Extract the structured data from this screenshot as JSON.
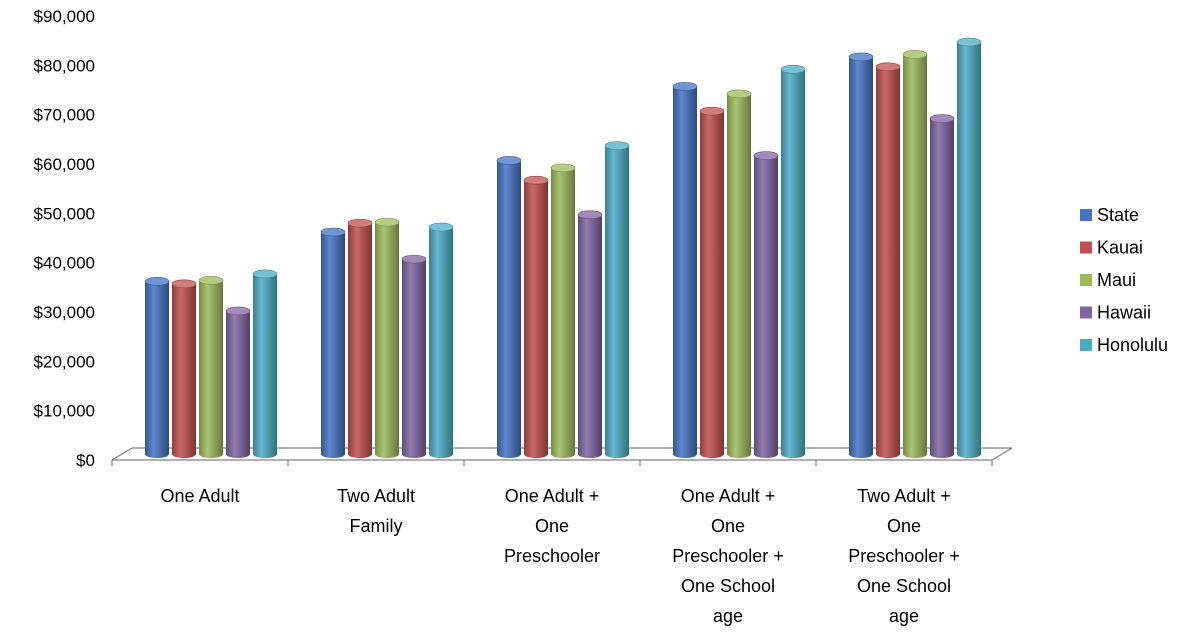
{
  "chart_data": {
    "type": "bar",
    "title": "",
    "xlabel": "",
    "ylabel": "",
    "ylim": [
      0,
      90000
    ],
    "y_ticks": [
      "$0",
      "$10,000",
      "$20,000",
      "$30,000",
      "$40,000",
      "$50,000",
      "$60,000",
      "$70,000",
      "$80,000",
      "$90,000"
    ],
    "grid": false,
    "legend_position": "right",
    "style": "3d-cylinder",
    "categories": [
      [
        "One Adult"
      ],
      [
        "Two Adult",
        "Family"
      ],
      [
        "One Adult +",
        "One",
        "Preschooler"
      ],
      [
        "One Adult +",
        "One",
        "Preschooler +",
        "One School",
        "age"
      ],
      [
        "Two Adult +",
        "One",
        "Preschooler +",
        "One School",
        "age"
      ]
    ],
    "series": [
      {
        "name": "State",
        "color": "#4472C4",
        "values": [
          35000,
          45000,
          59500,
          74500,
          80500
        ]
      },
      {
        "name": "Kauai",
        "color": "#C0504D",
        "values": [
          34500,
          46800,
          55500,
          69500,
          78500
        ]
      },
      {
        "name": "Maui",
        "color": "#9BBB59",
        "values": [
          35200,
          47000,
          58000,
          73000,
          81000
        ]
      },
      {
        "name": "Hawaii",
        "color": "#8064A2",
        "values": [
          29000,
          39500,
          48500,
          60500,
          68000
        ]
      },
      {
        "name": "Honolulu",
        "color": "#4BACC6",
        "values": [
          36500,
          46000,
          62500,
          78000,
          83500
        ]
      }
    ]
  }
}
